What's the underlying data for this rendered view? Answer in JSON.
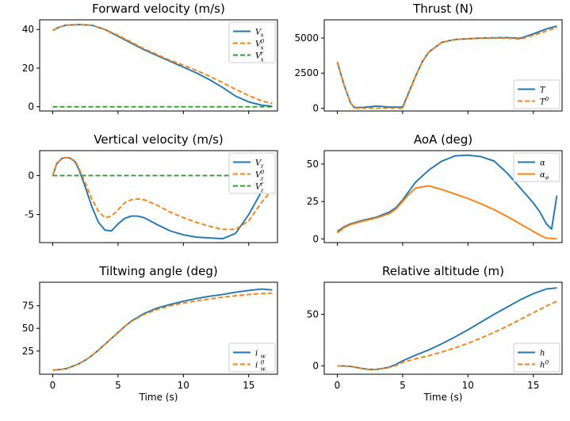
{
  "colors": {
    "blue": "#1f77b4",
    "orange": "#ff7f0e",
    "green": "#2ca02c"
  },
  "chart_data": [
    {
      "type": "line",
      "title": "Forward velocity (m/s)",
      "xlabel": "",
      "ylabel": "",
      "xlim": [
        -1,
        17.2
      ],
      "ylim": [
        -2.2,
        45
      ],
      "xticks": [
        0,
        5,
        10,
        15
      ],
      "show_xtick_labels": false,
      "yticks": [
        0,
        20,
        40
      ],
      "legend": "top-right",
      "series": [
        {
          "name": "V_x",
          "sup": "",
          "sub": "x",
          "color": "#1f77b4",
          "dash": false,
          "x": [
            0,
            0.5,
            1,
            2,
            3,
            4,
            5,
            6,
            7,
            8,
            9,
            10,
            11,
            12,
            13,
            14,
            15,
            16,
            16.8
          ],
          "y": [
            39.5,
            41.2,
            42.2,
            42.5,
            42.2,
            40,
            36.5,
            33,
            29.5,
            26.5,
            23.5,
            20.5,
            17.5,
            14,
            10,
            5.5,
            2.5,
            0.8,
            0.3
          ]
        },
        {
          "name": "V_x^0",
          "sup": "0",
          "sub": "x",
          "color": "#ff7f0e",
          "dash": true,
          "x": [
            0,
            0.5,
            1,
            2,
            3,
            4,
            5,
            6,
            7,
            8,
            9,
            10,
            11,
            12,
            13,
            14,
            15,
            16,
            16.8
          ],
          "y": [
            39.5,
            41.2,
            42.2,
            42.5,
            42.2,
            40,
            37,
            33.5,
            30,
            27,
            24,
            21.5,
            18.8,
            15.8,
            12.5,
            9,
            5.8,
            3,
            1.8
          ]
        },
        {
          "name": "V_x^r",
          "sup": "r",
          "sub": "x",
          "color": "#2ca02c",
          "dash": true,
          "x": [
            0,
            16.8
          ],
          "y": [
            0,
            0
          ]
        }
      ]
    },
    {
      "type": "line",
      "title": "Thrust (N)",
      "xlabel": "",
      "ylabel": "",
      "xlim": [
        -1,
        17.2
      ],
      "ylim": [
        -200,
        6300
      ],
      "xticks": [
        0,
        5,
        10,
        15
      ],
      "show_xtick_labels": false,
      "yticks": [
        0,
        2500,
        5000
      ],
      "legend": "lower-right",
      "series": [
        {
          "name": "T",
          "sup": "",
          "sub": "",
          "color": "#1f77b4",
          "dash": false,
          "x": [
            0,
            0.5,
            1,
            1.3,
            2,
            3,
            4,
            5,
            5.5,
            6,
            6.5,
            7,
            8,
            9,
            10,
            11,
            12,
            13,
            14,
            15,
            16,
            16.8
          ],
          "y": [
            3300,
            1700,
            400,
            50,
            60,
            150,
            80,
            80,
            1200,
            2300,
            3300,
            4000,
            4700,
            4900,
            4950,
            5000,
            5020,
            5030,
            4980,
            5300,
            5650,
            5850
          ]
        },
        {
          "name": "T^0",
          "sup": "0",
          "sub": "",
          "color": "#ff7f0e",
          "dash": true,
          "x": [
            0,
            0.5,
            1,
            1.3,
            2,
            3,
            4,
            5,
            5.5,
            6,
            6.5,
            7,
            8,
            9,
            10,
            11,
            12,
            13,
            14,
            15,
            16,
            16.8
          ],
          "y": [
            3300,
            1700,
            400,
            0,
            0,
            0,
            0,
            0,
            1150,
            2300,
            3300,
            4000,
            4700,
            4900,
            4950,
            5000,
            5000,
            5000,
            4920,
            5200,
            5500,
            5750
          ]
        }
      ]
    },
    {
      "type": "line",
      "title": "Vertical velocity (m/s)",
      "xlabel": "",
      "ylabel": "",
      "xlim": [
        -1,
        17.2
      ],
      "ylim": [
        -8.6,
        3.2
      ],
      "xticks": [
        0,
        5,
        10,
        15
      ],
      "show_xtick_labels": false,
      "yticks": [
        0,
        -5
      ],
      "legend": "top-right",
      "series": [
        {
          "name": "V_z",
          "sup": "",
          "sub": "z",
          "color": "#1f77b4",
          "dash": false,
          "x": [
            0,
            0.3,
            0.7,
            1,
            1.3,
            1.7,
            2,
            2.5,
            3,
            3.5,
            4,
            4.5,
            5,
            5.5,
            6,
            6.5,
            7,
            8,
            9,
            10,
            11,
            12,
            13,
            14,
            15,
            16,
            16.8
          ],
          "y": [
            0,
            1.5,
            2.2,
            2.3,
            2.25,
            1.8,
            0.8,
            -1.5,
            -4,
            -6,
            -7,
            -7.1,
            -6.2,
            -5.5,
            -5.2,
            -5.2,
            -5.4,
            -6.3,
            -7.1,
            -7.6,
            -7.9,
            -8,
            -8.1,
            -7.4,
            -5,
            -2,
            0.3
          ]
        },
        {
          "name": "V_z^0",
          "sup": "0",
          "sub": "z",
          "color": "#ff7f0e",
          "dash": true,
          "x": [
            0,
            0.3,
            0.7,
            1,
            1.3,
            1.7,
            2,
            2.5,
            3,
            3.5,
            4,
            4.5,
            5,
            5.5,
            6,
            6.5,
            7,
            8,
            9,
            10,
            11,
            12,
            13,
            14,
            15,
            16,
            16.8
          ],
          "y": [
            0,
            1.5,
            2.2,
            2.3,
            2.25,
            1.9,
            1,
            -1,
            -3,
            -4.6,
            -5.4,
            -5.2,
            -4.4,
            -3.5,
            -3.1,
            -3,
            -3.1,
            -3.8,
            -4.7,
            -5.4,
            -6,
            -6.5,
            -6.9,
            -6.9,
            -5.8,
            -3.4,
            -1.8
          ]
        },
        {
          "name": "V_z^r",
          "sup": "r",
          "sub": "z",
          "color": "#2ca02c",
          "dash": true,
          "x": [
            0,
            16.8
          ],
          "y": [
            0,
            0
          ]
        }
      ]
    },
    {
      "type": "line",
      "title": "AoA (deg)",
      "xlabel": "",
      "ylabel": "",
      "xlim": [
        -1,
        17.2
      ],
      "ylim": [
        -2.5,
        59
      ],
      "xticks": [
        0,
        5,
        10,
        15
      ],
      "show_xtick_labels": false,
      "yticks": [
        0,
        25,
        50
      ],
      "legend": "top-right",
      "series": [
        {
          "name": "α",
          "sup": "",
          "sub": "",
          "color": "#1f77b4",
          "dash": false,
          "x": [
            0,
            0.5,
            1,
            2,
            3,
            4,
            4.5,
            5,
            5.5,
            6,
            7,
            8,
            9,
            10,
            11,
            12,
            13,
            14,
            15,
            15.5,
            16,
            16.4,
            16.8
          ],
          "y": [
            5,
            8,
            10,
            12.5,
            14.5,
            18,
            21,
            26,
            32,
            38,
            46,
            52,
            55.5,
            56,
            55,
            52,
            44,
            34,
            24,
            18,
            10,
            6.5,
            29
          ]
        },
        {
          "name": "α_e",
          "sup": "",
          "sub": "e",
          "color": "#ff7f0e",
          "dash": false,
          "x": [
            0,
            0.5,
            1,
            2,
            3,
            4,
            4.5,
            5,
            5.5,
            6,
            7,
            8,
            9,
            10,
            11,
            12,
            13,
            14,
            15,
            15.5,
            16,
            16.8
          ],
          "y": [
            4,
            7.5,
            9.5,
            12,
            14,
            17,
            20,
            25,
            30,
            34,
            35.5,
            33,
            30,
            27,
            23.5,
            19.5,
            15,
            10,
            5,
            2.5,
            0.5,
            0
          ]
        }
      ]
    },
    {
      "type": "line",
      "title": "Tiltwing angle (deg)",
      "xlabel": "Time (s)",
      "ylabel": "",
      "xlim": [
        -1,
        17.2
      ],
      "ylim": [
        -0.6,
        101
      ],
      "xticks": [
        0,
        5,
        10,
        15
      ],
      "show_xtick_labels": true,
      "yticks": [
        25,
        50,
        75
      ],
      "legend": "lower-right",
      "series": [
        {
          "name": "i_w",
          "sup": "",
          "sub": "w",
          "color": "#1f77b4",
          "dash": false,
          "x": [
            0,
            0.5,
            1,
            1.5,
            2,
            2.5,
            3,
            3.5,
            4,
            4.5,
            5,
            5.5,
            6,
            7,
            8,
            9,
            10,
            11,
            12,
            13,
            14,
            15,
            16,
            16.8
          ],
          "y": [
            4,
            4.5,
            5.5,
            8,
            11,
            15,
            20,
            26,
            32.5,
            39,
            45.5,
            52,
            58,
            66.5,
            72.5,
            76.5,
            80,
            83,
            85.5,
            87.5,
            90,
            92,
            93.5,
            92.5
          ]
        },
        {
          "name": "i_w^0",
          "sup": "0",
          "sub": "w",
          "color": "#ff7f0e",
          "dash": true,
          "x": [
            0,
            0.5,
            1,
            1.5,
            2,
            2.5,
            3,
            3.5,
            4,
            4.5,
            5,
            5.5,
            6,
            7,
            8,
            9,
            10,
            11,
            12,
            13,
            14,
            15,
            16,
            16.8
          ],
          "y": [
            4,
            4.5,
            5.5,
            8,
            11,
            15,
            20,
            26,
            32.5,
            39,
            45.5,
            52,
            57.5,
            65.5,
            71,
            75,
            78,
            80.5,
            82.5,
            84.5,
            86,
            87.5,
            88.5,
            89
          ]
        }
      ]
    },
    {
      "type": "line",
      "title": "Relative altitude (m)",
      "xlabel": "Time (s)",
      "ylabel": "",
      "xlim": [
        -1,
        17.2
      ],
      "ylim": [
        -8,
        81
      ],
      "xticks": [
        0,
        5,
        10,
        15
      ],
      "show_xtick_labels": true,
      "yticks": [
        0,
        50
      ],
      "legend": "lower-right",
      "series": [
        {
          "name": "h",
          "sup": "",
          "sub": "",
          "color": "#1f77b4",
          "dash": false,
          "x": [
            0,
            0.5,
            1,
            1.5,
            2,
            2.5,
            3,
            3.5,
            4,
            4.5,
            5,
            6,
            7,
            8,
            9,
            10,
            11,
            12,
            13,
            14,
            15,
            16,
            16.8
          ],
          "y": [
            0,
            0,
            -0.5,
            -1.5,
            -2.7,
            -3.4,
            -3.3,
            -2.4,
            -1,
            1.5,
            5,
            10.5,
            15.5,
            21.5,
            28,
            35,
            42.5,
            50,
            57,
            64,
            70,
            74.5,
            75.5
          ]
        },
        {
          "name": "h^0",
          "sup": "0",
          "sub": "",
          "color": "#ff7f0e",
          "dash": true,
          "x": [
            0,
            0.5,
            1,
            1.5,
            2,
            2.5,
            3,
            3.5,
            4,
            4.5,
            5,
            6,
            7,
            8,
            9,
            10,
            11,
            12,
            13,
            14,
            15,
            16,
            16.8
          ],
          "y": [
            0,
            0,
            -0.5,
            -1.5,
            -2.7,
            -3.4,
            -3.3,
            -2.6,
            -1.4,
            0.5,
            3.5,
            7,
            10,
            13.5,
            17.5,
            22,
            27,
            32.5,
            38.5,
            45,
            51.5,
            58,
            62.5
          ]
        }
      ]
    }
  ]
}
